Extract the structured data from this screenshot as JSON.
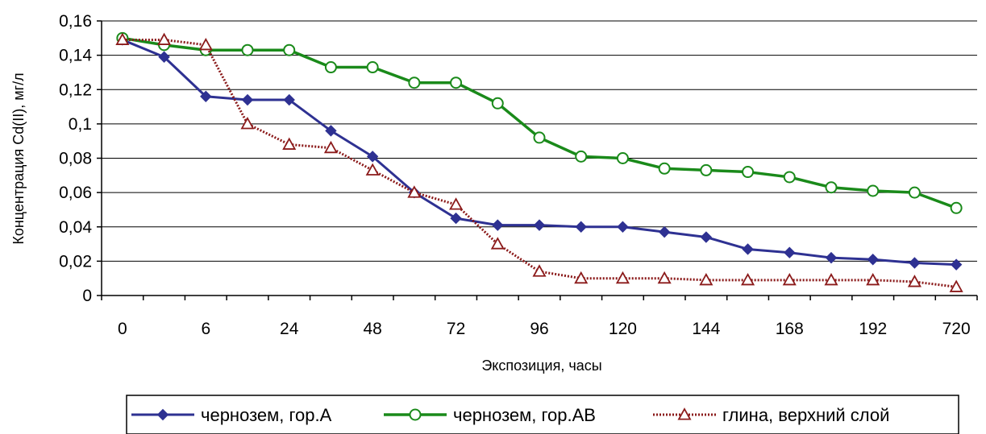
{
  "chart_data": {
    "type": "line",
    "xlabel": "Экспозиция, часы",
    "ylabel": "Концентрация Cd(II), мг/л",
    "ylim": [
      0,
      0.16
    ],
    "y_ticks": [
      "0",
      "0,02",
      "0,04",
      "0,06",
      "0,08",
      "0,1",
      "0,12",
      "0,14",
      "0,16"
    ],
    "x_tick_labels": [
      "0",
      "",
      "6",
      "",
      "24",
      "",
      "48",
      "",
      "72",
      "",
      "96",
      "",
      "120",
      "",
      "144",
      "",
      "168",
      "",
      "192",
      "",
      "720"
    ],
    "grid": "horizontal",
    "legend_position": "bottom",
    "series": [
      {
        "name": "чернозем, гор.А",
        "color": "#2E3192",
        "marker": "diamond",
        "values": [
          0.149,
          0.139,
          0.116,
          0.114,
          0.114,
          0.096,
          0.081,
          0.06,
          0.045,
          0.041,
          0.041,
          0.04,
          0.04,
          0.037,
          0.034,
          0.027,
          0.025,
          0.022,
          0.021,
          0.019,
          0.018
        ]
      },
      {
        "name": "чернозем, гор.АВ",
        "color": "#1A8A1A",
        "marker": "circle",
        "values": [
          0.15,
          0.146,
          0.143,
          0.143,
          0.143,
          0.133,
          0.133,
          0.124,
          0.124,
          0.112,
          0.092,
          0.081,
          0.08,
          0.074,
          0.073,
          0.072,
          0.069,
          0.063,
          0.061,
          0.06,
          0.051
        ]
      },
      {
        "name": "глина, верхний слой",
        "color": "#8B1A1A",
        "marker": "triangle",
        "values": [
          0.149,
          0.149,
          0.146,
          0.1,
          0.088,
          0.086,
          0.073,
          0.06,
          0.053,
          0.03,
          0.014,
          0.01,
          0.01,
          0.01,
          0.009,
          0.009,
          0.009,
          0.009,
          0.009,
          0.008,
          0.005
        ]
      }
    ]
  }
}
